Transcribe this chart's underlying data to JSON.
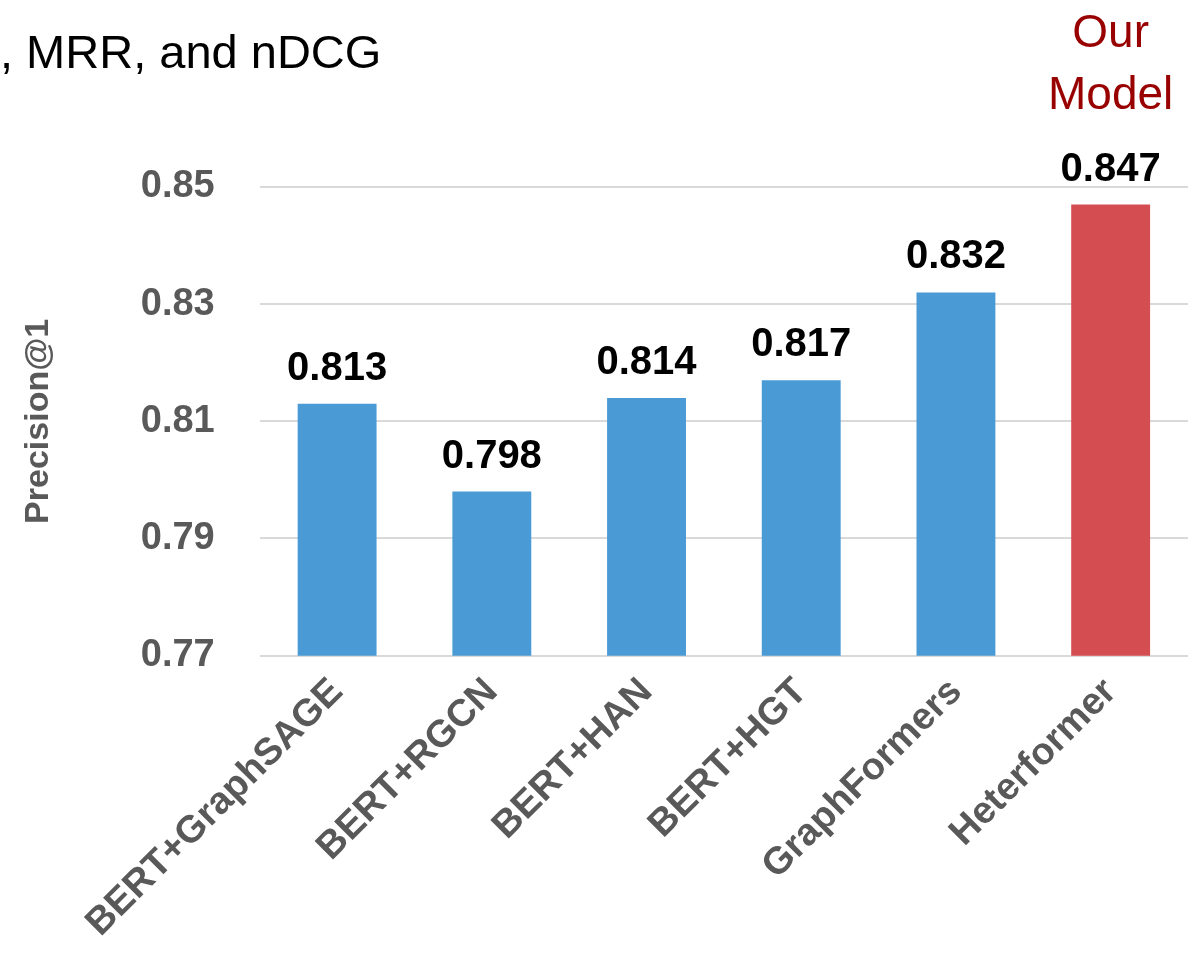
{
  "chart_data": {
    "type": "bar",
    "title": ", MRR, and nDCG",
    "ylabel": "Precision@1",
    "categories": [
      "BERT+GraphSAGE",
      "BERT+RGCN",
      "BERT+HAN",
      "BERT+HGT",
      "GraphFormers",
      "Heterformer"
    ],
    "values": [
      0.813,
      0.798,
      0.814,
      0.817,
      0.832,
      0.847
    ],
    "colors": [
      "#4a9bd5",
      "#4a9bd5",
      "#4a9bd5",
      "#4a9bd5",
      "#4a9bd5",
      "#d44d50"
    ],
    "ylim": [
      0.77,
      0.85
    ],
    "yticks": [
      0.77,
      0.79,
      0.81,
      0.83,
      0.85
    ],
    "grid": "y",
    "data_labels": true,
    "annotations": [
      {
        "text": "Our Model",
        "x": "Heterformer",
        "y": 0.847
      }
    ]
  }
}
